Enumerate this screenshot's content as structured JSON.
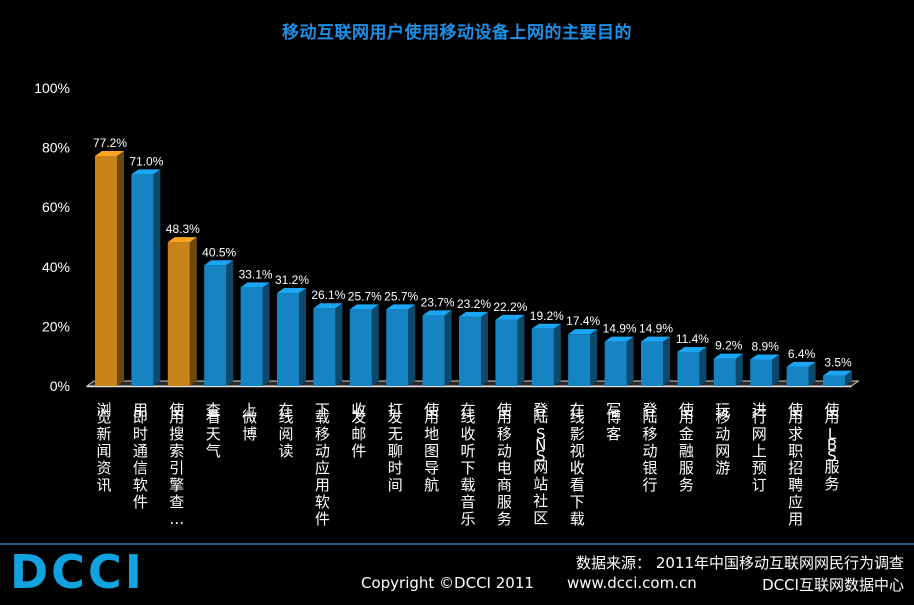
{
  "title": "移动互联网用户使用移动设备上网的主要目的",
  "footer": {
    "logo": "DCCI",
    "source": "数据来源： 2011年中国移动互联网网民行为调查",
    "copyright": "Copyright ©DCCI 2011",
    "website": "www.dcci.com.cn",
    "center": "DCCI互联网数据中心"
  },
  "colors": {
    "highlight": "#c8841a",
    "normal": "#1684c2",
    "title": "#1c8fe6",
    "background": "#000000"
  },
  "chart_data": {
    "type": "bar",
    "title": "移动互联网用户使用移动设备上网的主要目的",
    "ylim": [
      0,
      100
    ],
    "yticks": [
      "0%",
      "20%",
      "40%",
      "60%",
      "80%",
      "100%"
    ],
    "grid": false,
    "categories": [
      "浏览新闻资讯",
      "用即时通信软件",
      "使用搜索引擎查…",
      "查看天气",
      "上微博",
      "在线阅读",
      "下载移动应用软件",
      "收发邮件",
      "打发无聊时间",
      "使用地图导航",
      "在线收听下载音乐",
      "使用移动电商服务",
      "登陆SNS网站社区",
      "在线影视收看下载",
      "写博客",
      "登陆移动银行",
      "使用金融服务",
      "玩移动网游",
      "进行网上预订",
      "使用求职招聘应用",
      "使用LBS服务"
    ],
    "values": [
      77.2,
      71.0,
      48.3,
      40.5,
      33.1,
      31.2,
      26.1,
      25.7,
      25.7,
      23.7,
      23.2,
      22.2,
      19.2,
      17.4,
      14.9,
      14.9,
      11.4,
      9.2,
      8.9,
      6.4,
      3.5
    ],
    "value_labels": [
      "77.2%",
      "71.0%",
      "48.3%",
      "40.5%",
      "33.1%",
      "31.2%",
      "26.1%",
      "25.7%",
      "25.7%",
      "23.7%",
      "23.2%",
      "22.2%",
      "19.2%",
      "17.4%",
      "14.9%",
      "14.9%",
      "11.4%",
      "9.2%",
      "8.9%",
      "6.4%",
      "3.5%"
    ],
    "highlighted": [
      0,
      2
    ]
  }
}
